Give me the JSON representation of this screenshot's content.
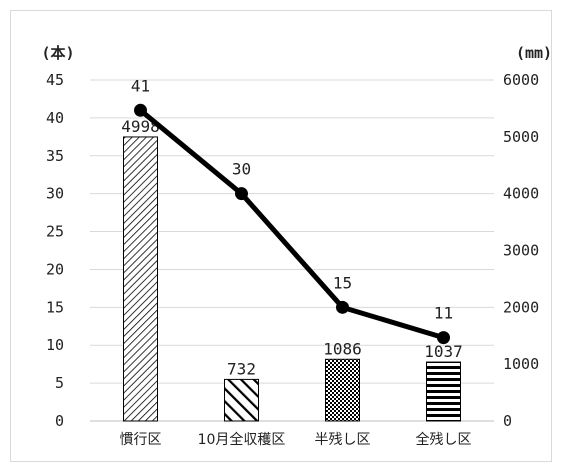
{
  "chart_data": {
    "type": "bar+line",
    "title": "",
    "categories": [
      "慣行区",
      "10月全収穫区",
      "半残し区",
      "全残し区"
    ],
    "y_left": {
      "unit_label": "(本)",
      "ylim": [
        0,
        45
      ],
      "ticks": [
        0,
        5,
        10,
        15,
        20,
        25,
        30,
        35,
        40,
        45
      ]
    },
    "y_right": {
      "unit_label": "(mm)",
      "ylim": [
        0,
        6000
      ],
      "ticks": [
        0,
        1000,
        2000,
        3000,
        4000,
        5000,
        6000
      ]
    },
    "series": [
      {
        "kind": "bar",
        "axis": "right",
        "values": [
          4998,
          732,
          1086,
          1037
        ],
        "labels": [
          "4998",
          "732",
          "1086",
          "1037"
        ],
        "patterns": [
          "diag-thin",
          "diag-thick",
          "checker",
          "horizontal"
        ]
      },
      {
        "kind": "line",
        "axis": "left",
        "values": [
          41,
          30,
          15,
          11
        ],
        "labels": [
          "41",
          "30",
          "15",
          "11"
        ],
        "color": "#000000"
      }
    ],
    "grid": true,
    "legend": "none"
  }
}
